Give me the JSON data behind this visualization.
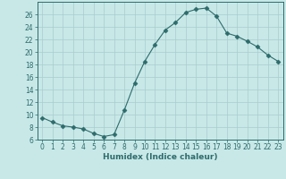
{
  "x": [
    0,
    1,
    2,
    3,
    4,
    5,
    6,
    7,
    8,
    9,
    10,
    11,
    12,
    13,
    14,
    15,
    16,
    17,
    18,
    19,
    20,
    21,
    22,
    23
  ],
  "y": [
    9.5,
    8.8,
    8.2,
    8.0,
    7.7,
    7.0,
    6.5,
    6.8,
    10.7,
    15.0,
    18.5,
    21.2,
    23.5,
    24.7,
    26.3,
    26.8,
    27.0,
    25.7,
    23.0,
    22.5,
    21.7,
    20.8,
    19.5,
    18.5
  ],
  "line_color": "#2e6b6b",
  "marker": "D",
  "marker_size": 2.5,
  "bg_color": "#c8e8e8",
  "grid_color": "#aacccc",
  "xlabel": "Humidex (Indice chaleur)",
  "xlim": [
    -0.5,
    23.5
  ],
  "ylim": [
    6,
    28
  ],
  "yticks": [
    6,
    8,
    10,
    12,
    14,
    16,
    18,
    20,
    22,
    24,
    26
  ],
  "xticks": [
    0,
    1,
    2,
    3,
    4,
    5,
    6,
    7,
    8,
    9,
    10,
    11,
    12,
    13,
    14,
    15,
    16,
    17,
    18,
    19,
    20,
    21,
    22,
    23
  ],
  "label_fontsize": 6.5,
  "tick_fontsize": 5.5
}
